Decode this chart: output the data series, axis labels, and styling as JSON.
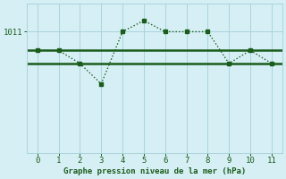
{
  "x": [
    0,
    1,
    2,
    3,
    4,
    5,
    6,
    7,
    8,
    9,
    10,
    11
  ],
  "y": [
    1010.0,
    1010.0,
    1009.3,
    1008.2,
    1011.0,
    1011.6,
    1011.0,
    1011.0,
    1011.0,
    1009.3,
    1010.0,
    1009.3
  ],
  "hline1": 1010.0,
  "hline2": 1009.3,
  "ytick_label": "1011",
  "ytick_value": 1011.0,
  "xlabel": "Graphe pression niveau de la mer (hPa)",
  "line_color": "#1a5c1a",
  "bg_color": "#d6eff5",
  "grid_color": "#aad4dc",
  "xlim": [
    -0.5,
    11.5
  ],
  "ylim": [
    1004.5,
    1012.5
  ],
  "figsize": [
    3.2,
    2.0
  ],
  "dpi": 100
}
